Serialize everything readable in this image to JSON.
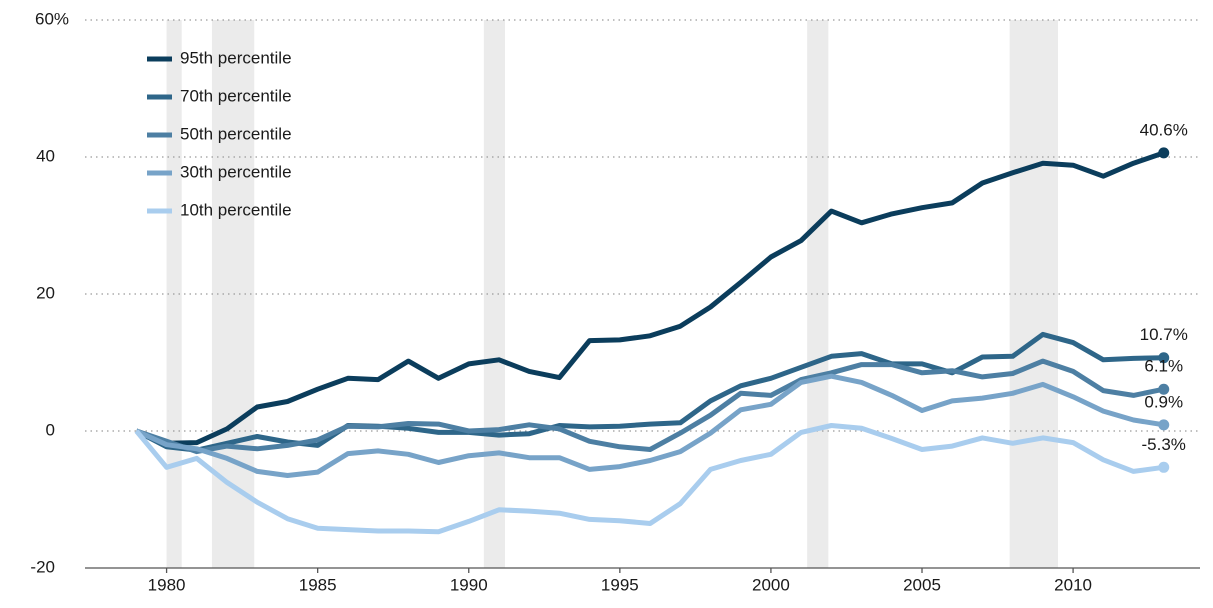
{
  "chart_data": {
    "type": "line",
    "x": [
      1979,
      1980,
      1981,
      1982,
      1983,
      1984,
      1985,
      1986,
      1987,
      1988,
      1989,
      1990,
      1991,
      1992,
      1993,
      1994,
      1995,
      1996,
      1997,
      1998,
      1999,
      2000,
      2001,
      2002,
      2003,
      2004,
      2005,
      2006,
      2007,
      2008,
      2009,
      2010,
      2011,
      2012,
      2013
    ],
    "series": [
      {
        "name": "95th percentile",
        "color": "#0b3d5c",
        "end_label": "40.6%",
        "values": [
          0,
          -1.8,
          -1.7,
          0.3,
          3.5,
          4.3,
          6.1,
          7.7,
          7.5,
          10.2,
          7.7,
          9.8,
          10.4,
          8.7,
          7.8,
          13.2,
          13.3,
          13.9,
          15.3,
          18.1,
          21.7,
          25.4,
          27.8,
          32.1,
          30.4,
          31.7,
          32.6,
          33.3,
          36.2,
          37.7,
          39.1,
          38.8,
          37.2,
          39.1,
          40.6
        ]
      },
      {
        "name": "70th percentile",
        "color": "#2e6689",
        "end_label": "10.7%",
        "values": [
          0,
          -2.3,
          -2.8,
          -1.8,
          -0.8,
          -1.6,
          -2.1,
          0.8,
          0.7,
          0.4,
          -0.2,
          -0.2,
          -0.6,
          -0.4,
          0.8,
          0.6,
          0.7,
          1.0,
          1.2,
          4.4,
          6.6,
          7.7,
          9.3,
          10.9,
          11.3,
          9.8,
          9.8,
          8.5,
          10.8,
          10.9,
          14.1,
          12.9,
          10.4,
          10.6,
          10.7
        ]
      },
      {
        "name": "50th percentile",
        "color": "#4d7fa3",
        "end_label": "6.1%",
        "values": [
          0,
          -1.5,
          -3.0,
          -2.2,
          -2.6,
          -2.1,
          -1.3,
          0.7,
          0.6,
          1.1,
          1.0,
          0.0,
          0.2,
          0.9,
          0.3,
          -1.5,
          -2.3,
          -2.7,
          -0.3,
          2.3,
          5.5,
          5.2,
          7.5,
          8.5,
          9.7,
          9.7,
          8.5,
          8.8,
          7.9,
          8.4,
          10.2,
          8.7,
          5.9,
          5.2,
          6.1
        ]
      },
      {
        "name": "30th percentile",
        "color": "#77a3c8",
        "end_label": "0.9%",
        "values": [
          0,
          -2.0,
          -2.6,
          -4.0,
          -5.9,
          -6.5,
          -6.0,
          -3.3,
          -2.9,
          -3.4,
          -4.6,
          -3.6,
          -3.2,
          -3.9,
          -3.9,
          -5.6,
          -5.2,
          -4.3,
          -3.0,
          -0.3,
          3.1,
          3.9,
          7.1,
          8.0,
          7.1,
          5.2,
          3.0,
          4.4,
          4.8,
          5.5,
          6.8,
          5.0,
          2.9,
          1.6,
          0.9
        ]
      },
      {
        "name": "10th percentile",
        "color": "#a9cdee",
        "end_label": "-5.3%",
        "values": [
          0,
          -5.3,
          -4.0,
          -7.5,
          -10.4,
          -12.8,
          -14.2,
          -14.4,
          -14.6,
          -14.6,
          -14.7,
          -13.2,
          -11.5,
          -11.7,
          -12.0,
          -12.9,
          -13.1,
          -13.5,
          -10.6,
          -5.6,
          -4.3,
          -3.4,
          -0.2,
          0.8,
          0.4,
          -1.1,
          -2.7,
          -2.2,
          -1.0,
          -1.8,
          -1.0,
          -1.7,
          -4.2,
          -5.9,
          -5.3
        ]
      }
    ],
    "shaded_periods": [
      [
        1980.0,
        1980.5
      ],
      [
        1981.5,
        1982.9
      ],
      [
        1990.5,
        1991.2
      ],
      [
        2001.2,
        2001.9
      ],
      [
        2007.9,
        2009.5
      ]
    ],
    "shade_color": "#ebebeb",
    "xlim": [
      1977.3,
      2014.2
    ],
    "xticks": [
      1980,
      1985,
      1990,
      1995,
      2000,
      2005,
      2010
    ],
    "ylim": [
      -20,
      60
    ],
    "yticks": [
      -20,
      0,
      20,
      40,
      {
        "value": 60,
        "label": "60%"
      }
    ],
    "grid": true
  }
}
